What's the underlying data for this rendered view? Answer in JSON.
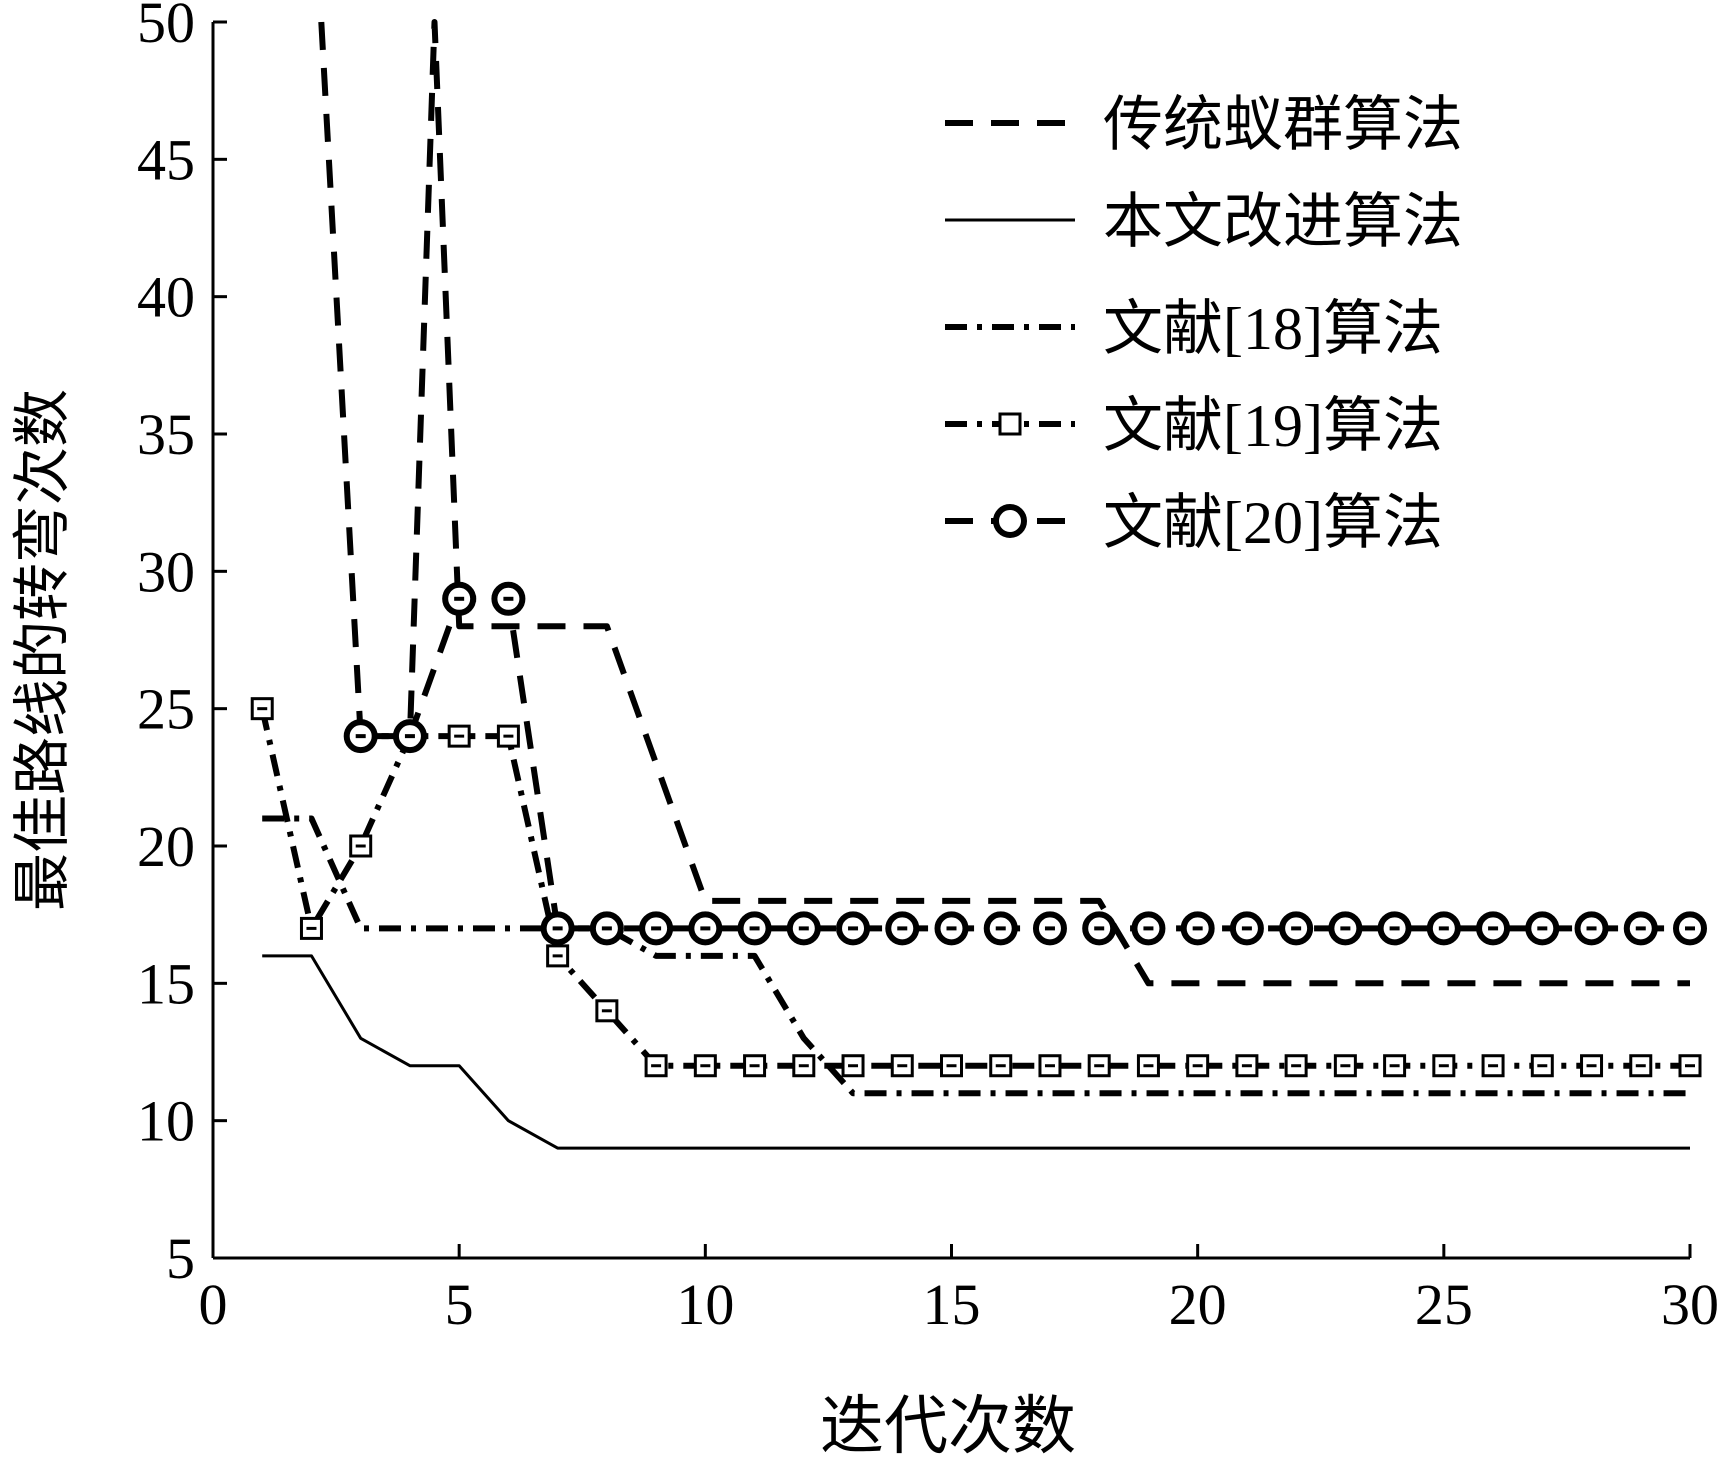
{
  "chart_data": {
    "type": "line",
    "title": "",
    "xlabel": "迭代次数",
    "ylabel": "最佳路线的转弯次数",
    "xlim": [
      0,
      30
    ],
    "ylim": [
      5,
      50
    ],
    "xticks": [
      0,
      5,
      10,
      15,
      20,
      25,
      30
    ],
    "yticks": [
      5,
      10,
      15,
      20,
      25,
      30,
      35,
      40,
      45,
      50
    ],
    "grid": false,
    "legend_position": "top-right",
    "series": [
      {
        "name": "传统蚁群算法",
        "style": "dashed",
        "marker": "none",
        "points": [
          [
            2.2,
            50
          ],
          [
            3,
            24
          ],
          [
            4,
            24
          ],
          [
            4.5,
            50
          ],
          [
            5,
            28
          ],
          [
            6,
            28
          ],
          [
            7,
            28
          ],
          [
            8,
            28
          ],
          [
            9,
            23
          ],
          [
            10,
            18
          ],
          [
            11,
            18
          ],
          [
            12,
            18
          ],
          [
            13,
            18
          ],
          [
            14,
            18
          ],
          [
            15,
            18
          ],
          [
            16,
            18
          ],
          [
            17,
            18
          ],
          [
            18,
            18
          ],
          [
            19,
            15
          ],
          [
            20,
            15
          ],
          [
            21,
            15
          ],
          [
            22,
            15
          ],
          [
            23,
            15
          ],
          [
            24,
            15
          ],
          [
            25,
            15
          ],
          [
            26,
            15
          ],
          [
            27,
            15
          ],
          [
            28,
            15
          ],
          [
            29,
            15
          ],
          [
            30,
            15
          ]
        ]
      },
      {
        "name": "本文改进算法",
        "style": "solid",
        "marker": "none",
        "points": [
          [
            1,
            16
          ],
          [
            2,
            16
          ],
          [
            3,
            13
          ],
          [
            4,
            12
          ],
          [
            5,
            12
          ],
          [
            6,
            10
          ],
          [
            7,
            9
          ],
          [
            8,
            9
          ],
          [
            9,
            9
          ],
          [
            10,
            9
          ],
          [
            15,
            9
          ],
          [
            20,
            9
          ],
          [
            25,
            9
          ],
          [
            30,
            9
          ]
        ]
      },
      {
        "name": "文献[18]算法",
        "style": "dashdot",
        "marker": "none",
        "points": [
          [
            1,
            21
          ],
          [
            2,
            21
          ],
          [
            3,
            17
          ],
          [
            4,
            17
          ],
          [
            5,
            17
          ],
          [
            6,
            17
          ],
          [
            7,
            17
          ],
          [
            8,
            17
          ],
          [
            9,
            16
          ],
          [
            10,
            16
          ],
          [
            11,
            16
          ],
          [
            12,
            13
          ],
          [
            13,
            11
          ],
          [
            14,
            11
          ],
          [
            15,
            11
          ],
          [
            20,
            11
          ],
          [
            25,
            11
          ],
          [
            30,
            11
          ]
        ]
      },
      {
        "name": "文献[19]算法",
        "style": "dashdot",
        "marker": "square",
        "points": [
          [
            1,
            25
          ],
          [
            2,
            17
          ],
          [
            3,
            20
          ],
          [
            4,
            24
          ],
          [
            5,
            24
          ],
          [
            6,
            24
          ],
          [
            7,
            16
          ],
          [
            8,
            14
          ],
          [
            9,
            12
          ],
          [
            10,
            12
          ],
          [
            11,
            12
          ],
          [
            12,
            12
          ],
          [
            13,
            12
          ],
          [
            14,
            12
          ],
          [
            15,
            12
          ],
          [
            16,
            12
          ],
          [
            17,
            12
          ],
          [
            18,
            12
          ],
          [
            19,
            12
          ],
          [
            20,
            12
          ],
          [
            21,
            12
          ],
          [
            22,
            12
          ],
          [
            23,
            12
          ],
          [
            24,
            12
          ],
          [
            25,
            12
          ],
          [
            26,
            12
          ],
          [
            27,
            12
          ],
          [
            28,
            12
          ],
          [
            29,
            12
          ],
          [
            30,
            12
          ]
        ]
      },
      {
        "name": "文献[20]算法",
        "style": "dashed",
        "marker": "circle",
        "points": [
          [
            3,
            24
          ],
          [
            4,
            24
          ],
          [
            5,
            29
          ],
          [
            6,
            29
          ],
          [
            7,
            17
          ],
          [
            8,
            17
          ],
          [
            9,
            17
          ],
          [
            10,
            17
          ],
          [
            11,
            17
          ],
          [
            12,
            17
          ],
          [
            13,
            17
          ],
          [
            14,
            17
          ],
          [
            15,
            17
          ],
          [
            16,
            17
          ],
          [
            17,
            17
          ],
          [
            18,
            17
          ],
          [
            19,
            17
          ],
          [
            20,
            17
          ],
          [
            21,
            17
          ],
          [
            22,
            17
          ],
          [
            23,
            17
          ],
          [
            24,
            17
          ],
          [
            25,
            17
          ],
          [
            26,
            17
          ],
          [
            27,
            17
          ],
          [
            28,
            17
          ],
          [
            29,
            17
          ],
          [
            30,
            17
          ]
        ]
      }
    ]
  }
}
